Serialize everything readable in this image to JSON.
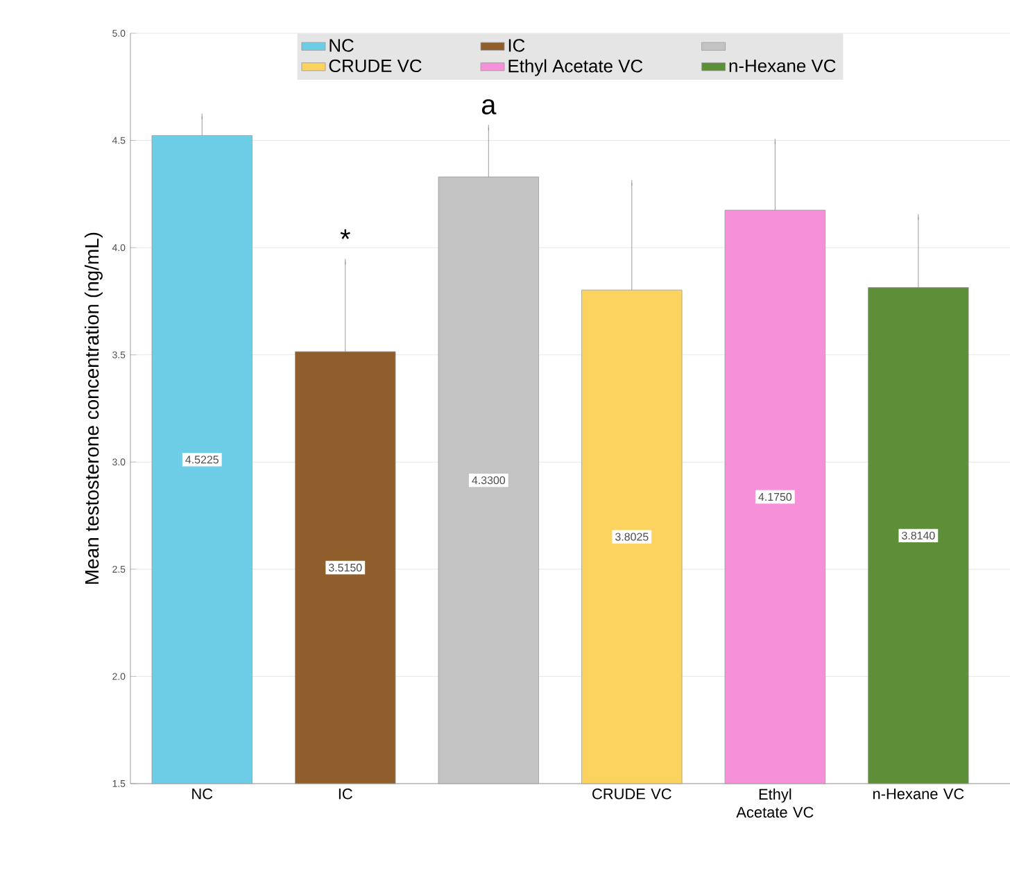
{
  "chart_data": {
    "type": "bar",
    "ylabel": "Mean testosterone concentration (ng/mL)",
    "categories": [
      "NC",
      "IC",
      null,
      "CRUDE VC",
      "Ethyl Acetate VC",
      "n-Hexane VC"
    ],
    "series": [
      {
        "name": "NC",
        "color": "#6dcde6",
        "values": [
          4.5225,
          null,
          null,
          null,
          null,
          null
        ],
        "errors": [
          0.09,
          null,
          null,
          null,
          null,
          null
        ],
        "value_labels": [
          "4.5225",
          null,
          null,
          null,
          null,
          null
        ]
      },
      {
        "name": "IC",
        "color": "#8f5e2c",
        "values": [
          null,
          3.515,
          null,
          null,
          null,
          null
        ],
        "errors": [
          null,
          0.42,
          null,
          null,
          null,
          null
        ],
        "value_labels": [
          null,
          "3.5150",
          null,
          null,
          null,
          null
        ]
      },
      {
        "color": "#c3c3c3",
        "values": [
          null,
          null,
          4.33,
          null,
          null,
          null
        ],
        "errors": [
          null,
          null,
          0.23,
          null,
          null,
          null
        ],
        "value_labels": [
          null,
          null,
          "4.3300",
          null,
          null,
          null
        ]
      },
      {
        "name": "CRUDE VC",
        "color": "#fcd35e",
        "values": [
          null,
          null,
          null,
          3.8025,
          null,
          null
        ],
        "errors": [
          null,
          null,
          null,
          0.5,
          null,
          null
        ],
        "value_labels": [
          null,
          null,
          null,
          "3.8025",
          null,
          null
        ]
      },
      {
        "name": "Ethyl Acetate VC",
        "color": "#f690d8",
        "values": [
          null,
          null,
          null,
          null,
          4.175,
          null
        ],
        "errors": [
          null,
          null,
          null,
          null,
          0.32,
          null
        ],
        "value_labels": [
          null,
          null,
          null,
          null,
          "4.1750",
          null
        ]
      },
      {
        "name": "n-Hexane VC",
        "color": "#5c8f38",
        "values": [
          null,
          null,
          null,
          null,
          null,
          3.814
        ],
        "errors": [
          null,
          null,
          null,
          null,
          null,
          0.33
        ],
        "value_labels": [
          null,
          null,
          null,
          null,
          null,
          "3.8140"
        ]
      }
    ],
    "ylim": [
      1.5,
      5.0
    ],
    "yticks": [
      {
        "value": 1.5,
        "label": "1.5"
      },
      {
        "value": 2.0,
        "label": "2.0"
      },
      {
        "value": 2.5,
        "label": "2.5"
      },
      {
        "value": 3.0,
        "label": "3.0"
      },
      {
        "value": 3.5,
        "label": "3.5"
      },
      {
        "value": 4.0,
        "label": "4.0"
      },
      {
        "value": 4.5,
        "label": "4.5"
      },
      {
        "value": 5.0,
        "label": "5.0"
      }
    ],
    "grid": "y",
    "legend": "top",
    "annotations": [
      "*",
      "a"
    ]
  }
}
